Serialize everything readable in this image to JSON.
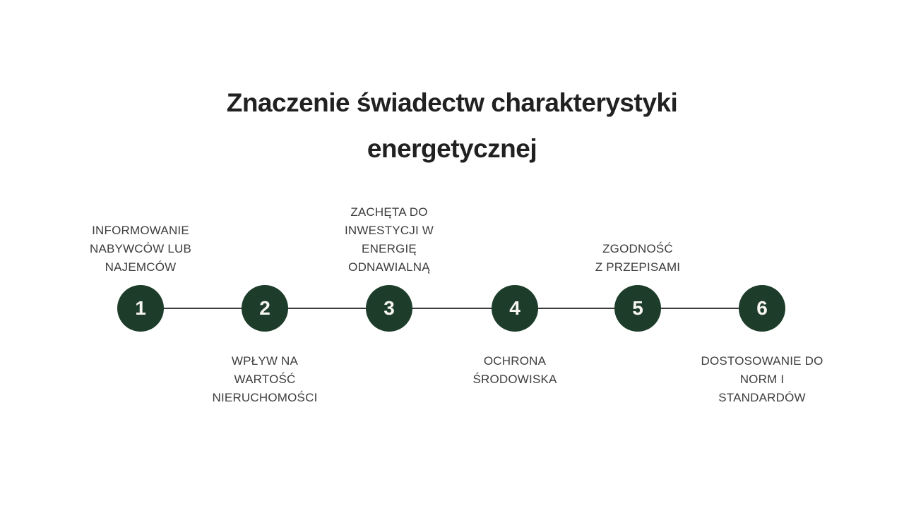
{
  "page": {
    "title": "Znaczenie świadectw charakterystyki\nenergetycznej"
  },
  "colors": {
    "background": "#ffffff",
    "title_text": "#212121",
    "label_text": "#3d3d3d",
    "circle_fill": "#1d3c2a",
    "circle_number_text": "#f8f6f1",
    "connector_line": "#3c3c3c"
  },
  "timeline": {
    "steps": [
      {
        "number": "1",
        "label": "INFORMOWANIE\nNABYWCÓW LUB\nNAJEMCÓW",
        "label_position": "above"
      },
      {
        "number": "2",
        "label": "WPŁYW NA\nWARTOŚĆ\nNIERUCHOMOŚCI",
        "label_position": "below"
      },
      {
        "number": "3",
        "label": "ZACHĘTA DO\nINWESTYCJI W\nENERGIĘ\nODNAWIALNĄ",
        "label_position": "above"
      },
      {
        "number": "4",
        "label": "OCHRONA\nŚRODOWISKA",
        "label_position": "below"
      },
      {
        "number": "5",
        "label": "ZGODNOŚĆ\nZ PRZEPISAMI",
        "label_position": "above"
      },
      {
        "number": "6",
        "label": "DOSTOSOWANIE DO\nNORM I\nSTANDARDÓW",
        "label_position": "below"
      }
    ]
  }
}
